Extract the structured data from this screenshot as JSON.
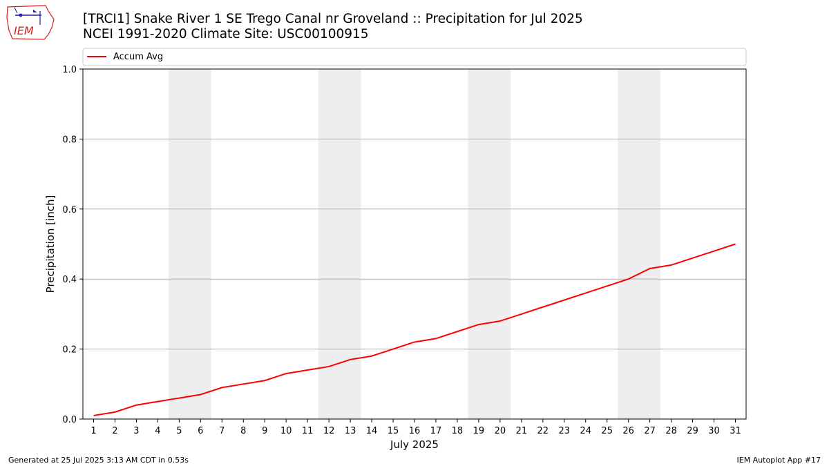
{
  "header": {
    "title_line1": "[TRCI1] Snake River 1 SE Trego Canal nr Groveland :: Precipitation for Jul 2025",
    "title_line2": "NCEI 1991-2020 Climate Site: USC00100915"
  },
  "logo": {
    "text": "IEM"
  },
  "footer": {
    "generated": "Generated at 25 Jul 2025 3:13 AM CDT in 0.53s",
    "app": "IEM Autoplot App #17"
  },
  "colors": {
    "line": "#ff0000",
    "weekend_band": "#eeeeee",
    "grid": "#b0b0b0"
  },
  "chart_data": {
    "type": "line",
    "title": "",
    "xlabel": "July 2025",
    "ylabel": "Precipitation [inch]",
    "xlim": [
      0.5,
      31.5
    ],
    "ylim": [
      0,
      1.0
    ],
    "yticks": [
      0.0,
      0.2,
      0.4,
      0.6,
      0.8,
      1.0
    ],
    "ytick_labels": [
      "0.0",
      "0.2",
      "0.4",
      "0.6",
      "0.8",
      "1.0"
    ],
    "x": [
      1,
      2,
      3,
      4,
      5,
      6,
      7,
      8,
      9,
      10,
      11,
      12,
      13,
      14,
      15,
      16,
      17,
      18,
      19,
      20,
      21,
      22,
      23,
      24,
      25,
      26,
      27,
      28,
      29,
      30,
      31
    ],
    "shaded_day_ranges": [
      [
        4.5,
        6.5
      ],
      [
        11.5,
        13.5
      ],
      [
        18.5,
        20.5
      ],
      [
        25.5,
        27.5
      ]
    ],
    "grid": "y",
    "legend_position": "top",
    "series": [
      {
        "name": "Accum Avg",
        "values": [
          0.01,
          0.02,
          0.04,
          0.05,
          0.06,
          0.07,
          0.09,
          0.1,
          0.11,
          0.13,
          0.14,
          0.15,
          0.17,
          0.18,
          0.2,
          0.22,
          0.23,
          0.25,
          0.27,
          0.28,
          0.3,
          0.32,
          0.34,
          0.36,
          0.38,
          0.4,
          0.43,
          0.44,
          0.46,
          0.48,
          0.5
        ]
      }
    ]
  }
}
